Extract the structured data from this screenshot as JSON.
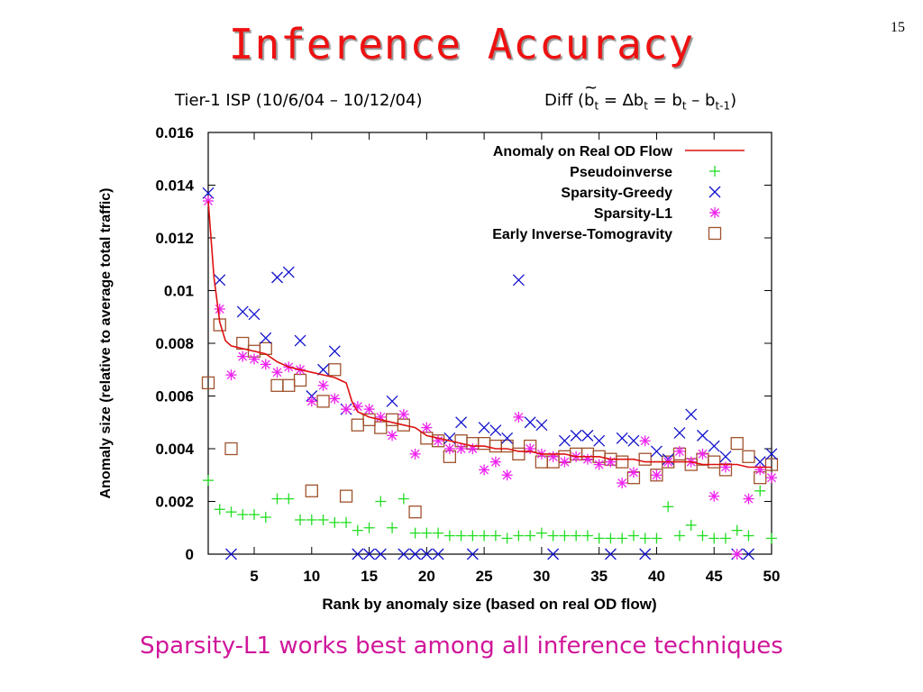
{
  "slide": {
    "title": "Inference Accuracy",
    "page_number": "15",
    "subtitle_left": "Tier-1 ISP (10/6/04 – 10/12/04)",
    "subtitle_right": {
      "prefix": "Diff (",
      "b": "b",
      "tilde": "~",
      "sub_t": "t",
      "eq1": " = ",
      "delta": "∆",
      "eq2": " = b",
      "minus": " – b",
      "sub_t1": "t-1",
      "suffix": ")"
    },
    "footer_note": "Sparsity-L1 works best among all inference techniques"
  },
  "colors": {
    "title": "#ee1111",
    "footer": "#d0169a",
    "anomaly_line": "#dd1111",
    "pseudoinverse": "#22dd22",
    "sparsity_greedy": "#1111cc",
    "sparsity_l1": "#ee22ee",
    "tomogravity": "#a0522d"
  },
  "chart_data": {
    "type": "scatter",
    "xlabel": "Rank by anomaly size (based on real OD flow)",
    "ylabel": "Anomaly size (relative to average total traffic)",
    "xlim": [
      1,
      50
    ],
    "ylim": [
      0,
      0.016
    ],
    "x_ticks": [
      5,
      10,
      15,
      20,
      25,
      30,
      35,
      40,
      45,
      50
    ],
    "y_ticks": [
      0,
      0.002,
      0.004,
      0.006,
      0.008,
      0.01,
      0.012,
      0.014,
      0.016
    ],
    "y_tick_labels": [
      "0",
      "0.002",
      "0.004",
      "0.006",
      "0.008",
      "0.01",
      "0.012",
      "0.014",
      "0.016"
    ],
    "legend_position": "top-right",
    "grid": false,
    "series": [
      {
        "name": "Anomaly on Real OD Flow",
        "style": "line",
        "marker": "none",
        "points": [
          [
            1,
            0.0134
          ],
          [
            1.5,
            0.0105
          ],
          [
            2,
            0.0088
          ],
          [
            2.5,
            0.0081
          ],
          [
            3,
            0.0079
          ],
          [
            4,
            0.0078
          ],
          [
            5,
            0.0077
          ],
          [
            6,
            0.0076
          ],
          [
            7,
            0.0073
          ],
          [
            8,
            0.0071
          ],
          [
            9,
            0.007
          ],
          [
            10,
            0.0069
          ],
          [
            11,
            0.0068
          ],
          [
            12,
            0.0067
          ],
          [
            13,
            0.0065
          ],
          [
            13.5,
            0.0058
          ],
          [
            14,
            0.0054
          ],
          [
            15,
            0.0052
          ],
          [
            16,
            0.0051
          ],
          [
            17,
            0.005
          ],
          [
            18,
            0.0049
          ],
          [
            19,
            0.0048
          ],
          [
            20,
            0.0045
          ],
          [
            21,
            0.0044
          ],
          [
            22,
            0.0043
          ],
          [
            23,
            0.0042
          ],
          [
            24,
            0.0041
          ],
          [
            25,
            0.0041
          ],
          [
            26,
            0.004
          ],
          [
            27,
            0.004
          ],
          [
            28,
            0.0039
          ],
          [
            29,
            0.0039
          ],
          [
            30,
            0.0038
          ],
          [
            31,
            0.0038
          ],
          [
            32,
            0.0038
          ],
          [
            33,
            0.0037
          ],
          [
            34,
            0.0037
          ],
          [
            35,
            0.0037
          ],
          [
            36,
            0.0036
          ],
          [
            37,
            0.0036
          ],
          [
            38,
            0.0036
          ],
          [
            39,
            0.0035
          ],
          [
            40,
            0.0035
          ],
          [
            41,
            0.0035
          ],
          [
            42,
            0.0035
          ],
          [
            43,
            0.0035
          ],
          [
            44,
            0.0034
          ],
          [
            45,
            0.0034
          ],
          [
            46,
            0.0034
          ],
          [
            47,
            0.0034
          ],
          [
            48,
            0.0033
          ],
          [
            49,
            0.0033
          ],
          [
            50,
            0.0033
          ]
        ]
      },
      {
        "name": "Pseudoinverse",
        "style": "points",
        "marker": "plus",
        "points": [
          [
            1,
            0.0028
          ],
          [
            2,
            0.0017
          ],
          [
            3,
            0.0016
          ],
          [
            4,
            0.0015
          ],
          [
            5,
            0.0015
          ],
          [
            6,
            0.0014
          ],
          [
            7,
            0.0021
          ],
          [
            8,
            0.0021
          ],
          [
            9,
            0.0013
          ],
          [
            10,
            0.0013
          ],
          [
            11,
            0.0013
          ],
          [
            12,
            0.0012
          ],
          [
            13,
            0.0012
          ],
          [
            14,
            0.0009
          ],
          [
            15,
            0.001
          ],
          [
            16,
            0.002
          ],
          [
            17,
            0.001
          ],
          [
            18,
            0.0021
          ],
          [
            19,
            0.0008
          ],
          [
            20,
            0.0008
          ],
          [
            21,
            0.0008
          ],
          [
            22,
            0.0007
          ],
          [
            23,
            0.0007
          ],
          [
            24,
            0.0007
          ],
          [
            25,
            0.0007
          ],
          [
            26,
            0.0007
          ],
          [
            27,
            0.0006
          ],
          [
            28,
            0.0007
          ],
          [
            29,
            0.0007
          ],
          [
            30,
            0.0008
          ],
          [
            31,
            0.0007
          ],
          [
            32,
            0.0007
          ],
          [
            33,
            0.0007
          ],
          [
            34,
            0.0007
          ],
          [
            35,
            0.0006
          ],
          [
            36,
            0.0006
          ],
          [
            37,
            0.0006
          ],
          [
            38,
            0.0007
          ],
          [
            39,
            0.0006
          ],
          [
            40,
            0.0006
          ],
          [
            41,
            0.0018
          ],
          [
            42,
            0.0007
          ],
          [
            43,
            0.0011
          ],
          [
            44,
            0.0007
          ],
          [
            45,
            0.0006
          ],
          [
            46,
            0.0006
          ],
          [
            47,
            0.0009
          ],
          [
            48,
            0.0007
          ],
          [
            49,
            0.0024
          ],
          [
            50,
            0.0006
          ]
        ]
      },
      {
        "name": "Sparsity-Greedy",
        "style": "points",
        "marker": "cross",
        "points": [
          [
            1,
            0.0137
          ],
          [
            2,
            0.0104
          ],
          [
            3,
            0.0
          ],
          [
            4,
            0.0092
          ],
          [
            5,
            0.0091
          ],
          [
            6,
            0.0082
          ],
          [
            7,
            0.0105
          ],
          [
            8,
            0.0107
          ],
          [
            9,
            0.0081
          ],
          [
            10,
            0.006
          ],
          [
            11,
            0.007
          ],
          [
            12,
            0.0077
          ],
          [
            13,
            0.0055
          ],
          [
            14,
            0.0
          ],
          [
            15,
            0.0
          ],
          [
            16,
            0.0
          ],
          [
            17,
            0.0058
          ],
          [
            18,
            0.0
          ],
          [
            19,
            0.0
          ],
          [
            20,
            0.0
          ],
          [
            21,
            0.0
          ],
          [
            22,
            0.0044
          ],
          [
            23,
            0.005
          ],
          [
            24,
            0.0
          ],
          [
            25,
            0.0048
          ],
          [
            26,
            0.0047
          ],
          [
            27,
            0.0044
          ],
          [
            28,
            0.0104
          ],
          [
            29,
            0.005
          ],
          [
            30,
            0.0049
          ],
          [
            31,
            0.0
          ],
          [
            32,
            0.0043
          ],
          [
            33,
            0.0045
          ],
          [
            34,
            0.0045
          ],
          [
            35,
            0.0043
          ],
          [
            36,
            0.0
          ],
          [
            37,
            0.0044
          ],
          [
            38,
            0.0043
          ],
          [
            39,
            0.0
          ],
          [
            40,
            0.0039
          ],
          [
            41,
            0.0036
          ],
          [
            42,
            0.0046
          ],
          [
            43,
            0.0053
          ],
          [
            44,
            0.0045
          ],
          [
            45,
            0.0041
          ],
          [
            46,
            0.0037
          ],
          [
            47,
            0.0
          ],
          [
            48,
            0.0
          ],
          [
            49,
            0.0035
          ],
          [
            50,
            0.0038
          ]
        ]
      },
      {
        "name": "Sparsity-L1",
        "style": "points",
        "marker": "asterisk",
        "points": [
          [
            1,
            0.0134
          ],
          [
            2,
            0.0093
          ],
          [
            3,
            0.0068
          ],
          [
            4,
            0.0075
          ],
          [
            5,
            0.0074
          ],
          [
            6,
            0.0072
          ],
          [
            7,
            0.0069
          ],
          [
            8,
            0.0071
          ],
          [
            9,
            0.007
          ],
          [
            10,
            0.0058
          ],
          [
            11,
            0.0064
          ],
          [
            12,
            0.0059
          ],
          [
            13,
            0.0055
          ],
          [
            14,
            0.0056
          ],
          [
            15,
            0.0055
          ],
          [
            16,
            0.0052
          ],
          [
            17,
            0.0045
          ],
          [
            18,
            0.0053
          ],
          [
            19,
            0.0038
          ],
          [
            20,
            0.0048
          ],
          [
            21,
            0.0043
          ],
          [
            22,
            0.004
          ],
          [
            23,
            0.004
          ],
          [
            24,
            0.004
          ],
          [
            25,
            0.0032
          ],
          [
            26,
            0.0035
          ],
          [
            27,
            0.003
          ],
          [
            28,
            0.0052
          ],
          [
            29,
            0.004
          ],
          [
            30,
            0.0038
          ],
          [
            31,
            0.0037
          ],
          [
            32,
            0.0035
          ],
          [
            33,
            0.0037
          ],
          [
            34,
            0.0036
          ],
          [
            35,
            0.0034
          ],
          [
            36,
            0.0035
          ],
          [
            37,
            0.0027
          ],
          [
            38,
            0.0031
          ],
          [
            39,
            0.0043
          ],
          [
            40,
            0.003
          ],
          [
            41,
            0.0035
          ],
          [
            42,
            0.0039
          ],
          [
            43,
            0.0035
          ],
          [
            44,
            0.0038
          ],
          [
            45,
            0.0022
          ],
          [
            46,
            0.0033
          ],
          [
            47,
            0.0
          ],
          [
            48,
            0.0021
          ],
          [
            49,
            0.0032
          ],
          [
            50,
            0.0029
          ]
        ]
      },
      {
        "name": "Early Inverse-Tomogravity",
        "style": "points",
        "marker": "square",
        "points": [
          [
            1,
            0.0065
          ],
          [
            2,
            0.0087
          ],
          [
            3,
            0.004
          ],
          [
            4,
            0.008
          ],
          [
            5,
            0.0077
          ],
          [
            6,
            0.0078
          ],
          [
            7,
            0.0064
          ],
          [
            8,
            0.0064
          ],
          [
            9,
            0.0066
          ],
          [
            10,
            0.0024
          ],
          [
            11,
            0.0058
          ],
          [
            12,
            0.007
          ],
          [
            13,
            0.0022
          ],
          [
            14,
            0.0049
          ],
          [
            15,
            0.0051
          ],
          [
            16,
            0.0048
          ],
          [
            17,
            0.0051
          ],
          [
            18,
            0.0049
          ],
          [
            19,
            0.0016
          ],
          [
            20,
            0.0044
          ],
          [
            21,
            0.0043
          ],
          [
            22,
            0.0037
          ],
          [
            23,
            0.0043
          ],
          [
            24,
            0.0042
          ],
          [
            25,
            0.0042
          ],
          [
            26,
            0.0041
          ],
          [
            27,
            0.0041
          ],
          [
            28,
            0.0038
          ],
          [
            29,
            0.0041
          ],
          [
            30,
            0.0035
          ],
          [
            31,
            0.0035
          ],
          [
            32,
            0.0037
          ],
          [
            33,
            0.0038
          ],
          [
            34,
            0.0038
          ],
          [
            35,
            0.0037
          ],
          [
            36,
            0.0036
          ],
          [
            37,
            0.0035
          ],
          [
            38,
            0.0029
          ],
          [
            39,
            0.0036
          ],
          [
            40,
            0.003
          ],
          [
            41,
            0.0035
          ],
          [
            42,
            0.0038
          ],
          [
            43,
            0.0034
          ],
          [
            44,
            0.0036
          ],
          [
            45,
            0.0035
          ],
          [
            46,
            0.0032
          ],
          [
            47,
            0.0042
          ],
          [
            48,
            0.0037
          ],
          [
            49,
            0.0029
          ],
          [
            50,
            0.0034
          ]
        ]
      }
    ]
  }
}
